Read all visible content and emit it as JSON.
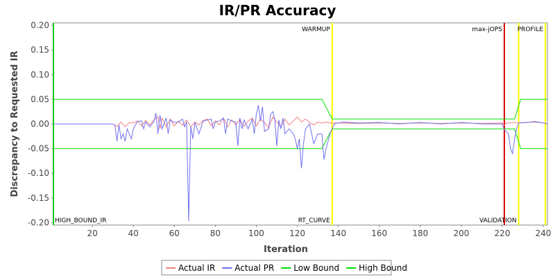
{
  "chart_data": {
    "type": "line",
    "title": "IR/PR Accuracy",
    "xlabel": "Iteration",
    "ylabel": "Discrepancy to Requested IR",
    "xlim": [
      1,
      242
    ],
    "ylim": [
      -0.205,
      0.205
    ],
    "x_ticks": [
      20,
      40,
      60,
      80,
      100,
      120,
      140,
      160,
      180,
      200,
      220,
      240
    ],
    "y_ticks": [
      -0.2,
      -0.15,
      -0.1,
      -0.05,
      0.0,
      0.05,
      0.1,
      0.15,
      0.2
    ],
    "y_tick_labels": [
      "-0.20",
      "-0.15",
      "-0.10",
      "-0.05",
      "0.00",
      "0.05",
      "0.10",
      "0.15",
      "0.20"
    ],
    "grid": false,
    "legend_position": "bottom",
    "markers": [
      {
        "label": "HIGH_BOUND_IR",
        "x": 1,
        "color": "#00cc00",
        "label_pos": "bottom-right"
      },
      {
        "label": "WARMUP",
        "x": 137,
        "color": "#ffff00",
        "label_pos": "top-left"
      },
      {
        "label": "RT_CURVE",
        "x": 137,
        "color": "#ffff00",
        "label_pos": "bottom-left"
      },
      {
        "label": "max-jOPS",
        "x": 221,
        "color": "#dd0000",
        "label_pos": "top-left"
      },
      {
        "label": "VALIDATION",
        "x": 228,
        "color": "#ffff00",
        "label_pos": "bottom-left"
      },
      {
        "label": "PROFILE",
        "x": 241,
        "color": "#ffff00",
        "label_pos": "top-left"
      }
    ],
    "series": [
      {
        "name": "Actual IR",
        "color": "#f08080",
        "points": [
          [
            1,
            0
          ],
          [
            30,
            0
          ],
          [
            32,
            -0.005
          ],
          [
            34,
            0.004
          ],
          [
            36,
            -0.006
          ],
          [
            38,
            0.003
          ],
          [
            40,
            0.002
          ],
          [
            42,
            0.006
          ],
          [
            44,
            -0.004
          ],
          [
            46,
            0.007
          ],
          [
            48,
            -0.002
          ],
          [
            50,
            0.008
          ],
          [
            52,
            0.015
          ],
          [
            53,
            -0.01
          ],
          [
            54,
            0.012
          ],
          [
            56,
            -0.006
          ],
          [
            58,
            0.01
          ],
          [
            60,
            -0.004
          ],
          [
            62,
            0.006
          ],
          [
            64,
            -0.003
          ],
          [
            66,
            0.008
          ],
          [
            68,
            -0.006
          ],
          [
            70,
            0.004
          ],
          [
            72,
            -0.002
          ],
          [
            74,
            0.007
          ],
          [
            76,
            0.01
          ],
          [
            78,
            -0.004
          ],
          [
            80,
            0.006
          ],
          [
            82,
            -0.002
          ],
          [
            84,
            0.012
          ],
          [
            86,
            -0.006
          ],
          [
            88,
            0.008
          ],
          [
            90,
            -0.002
          ],
          [
            92,
            0.01
          ],
          [
            94,
            -0.005
          ],
          [
            96,
            0.006
          ],
          [
            98,
            0.012
          ],
          [
            100,
            -0.004
          ],
          [
            102,
            0.01
          ],
          [
            104,
            0.003
          ],
          [
            106,
            -0.008
          ],
          [
            108,
            0.014
          ],
          [
            110,
            0.004
          ],
          [
            112,
            -0.006
          ],
          [
            114,
            0.01
          ],
          [
            116,
            -0.002
          ],
          [
            118,
            0.006
          ],
          [
            120,
            0.014
          ],
          [
            122,
            0.004
          ],
          [
            124,
            0.01
          ],
          [
            126,
            0.003
          ],
          [
            128,
            -0.002
          ],
          [
            130,
            0.004
          ],
          [
            132,
            0.002
          ],
          [
            134,
            0.004
          ],
          [
            136,
            0.002
          ],
          [
            140,
            0.002
          ],
          [
            150,
            0.001
          ],
          [
            160,
            0.002
          ],
          [
            170,
            0.001
          ],
          [
            180,
            0.002
          ],
          [
            190,
            0.001
          ],
          [
            200,
            0.002
          ],
          [
            210,
            0.001
          ],
          [
            220,
            0.002
          ],
          [
            221,
            -0.003
          ],
          [
            222,
            0.002
          ],
          [
            226,
            0.003
          ],
          [
            228,
            0.002
          ],
          [
            230,
            0.003
          ],
          [
            236,
            0.004
          ],
          [
            240,
            0.002
          ],
          [
            242,
            0
          ]
        ]
      },
      {
        "name": "Actual PR",
        "color": "#7070f0",
        "points": [
          [
            1,
            0
          ],
          [
            30,
            0
          ],
          [
            31,
            -0.003
          ],
          [
            32,
            -0.035
          ],
          [
            33,
            -0.002
          ],
          [
            34,
            -0.03
          ],
          [
            35,
            -0.02
          ],
          [
            36,
            -0.035
          ],
          [
            37,
            -0.01
          ],
          [
            38,
            -0.02
          ],
          [
            39,
            -0.03
          ],
          [
            40,
            -0.01
          ],
          [
            42,
            0.005
          ],
          [
            44,
            0.006
          ],
          [
            45,
            -0.01
          ],
          [
            46,
            0.004
          ],
          [
            48,
            -0.006
          ],
          [
            50,
            0.005
          ],
          [
            51,
            0.022
          ],
          [
            52,
            -0.02
          ],
          [
            53,
            0.018
          ],
          [
            54,
            -0.01
          ],
          [
            56,
            0.012
          ],
          [
            57,
            -0.02
          ],
          [
            58,
            0.008
          ],
          [
            60,
            0.003
          ],
          [
            62,
            0.004
          ],
          [
            64,
            0.01
          ],
          [
            65,
            -0.006
          ],
          [
            66,
            0.004
          ],
          [
            67,
            -0.197
          ],
          [
            68,
            -0.005
          ],
          [
            69,
            -0.03
          ],
          [
            70,
            0.003
          ],
          [
            72,
            -0.02
          ],
          [
            74,
            0.005
          ],
          [
            76,
            0.008
          ],
          [
            78,
            0.01
          ],
          [
            79,
            -0.01
          ],
          [
            80,
            0.004
          ],
          [
            82,
            0.006
          ],
          [
            84,
            0.012
          ],
          [
            85,
            -0.02
          ],
          [
            86,
            0.01
          ],
          [
            88,
            0.006
          ],
          [
            90,
            0.004
          ],
          [
            91,
            -0.045
          ],
          [
            92,
            0.012
          ],
          [
            93,
            -0.01
          ],
          [
            94,
            0.008
          ],
          [
            96,
            -0.01
          ],
          [
            98,
            0.01
          ],
          [
            99,
            -0.02
          ],
          [
            100,
            0.02
          ],
          [
            101,
            0.038
          ],
          [
            102,
            0.006
          ],
          [
            103,
            0.035
          ],
          [
            104,
            -0.015
          ],
          [
            106,
            -0.01
          ],
          [
            107,
            0.02
          ],
          [
            108,
            0.025
          ],
          [
            109,
            0.01
          ],
          [
            110,
            -0.045
          ],
          [
            111,
            0.008
          ],
          [
            112,
            -0.01
          ],
          [
            113,
            0.012
          ],
          [
            114,
            -0.02
          ],
          [
            116,
            -0.01
          ],
          [
            118,
            -0.02
          ],
          [
            119,
            -0.03
          ],
          [
            120,
            -0.05
          ],
          [
            121,
            -0.03
          ],
          [
            122,
            -0.09
          ],
          [
            123,
            -0.04
          ],
          [
            124,
            -0.01
          ],
          [
            126,
            0.0
          ],
          [
            128,
            -0.04
          ],
          [
            130,
            -0.02
          ],
          [
            132,
            -0.02
          ],
          [
            133,
            -0.072
          ],
          [
            134,
            -0.05
          ],
          [
            136,
            -0.02
          ],
          [
            138,
            0.0
          ],
          [
            142,
            0.004
          ],
          [
            150,
            0.002
          ],
          [
            160,
            0.003
          ],
          [
            170,
            0.0
          ],
          [
            180,
            0.003
          ],
          [
            190,
            0.0
          ],
          [
            200,
            0.003
          ],
          [
            210,
            0.0
          ],
          [
            220,
            0.0
          ],
          [
            221,
            -0.012
          ],
          [
            223,
            -0.02
          ],
          [
            224,
            -0.05
          ],
          [
            225,
            -0.06
          ],
          [
            226,
            -0.03
          ],
          [
            227,
            -0.01
          ],
          [
            228,
            0.002
          ],
          [
            232,
            0.003
          ],
          [
            236,
            0.005
          ],
          [
            240,
            0.002
          ],
          [
            242,
            0
          ]
        ]
      },
      {
        "name": "Low Bound",
        "color": "#00e000",
        "points": [
          [
            1,
            -0.05
          ],
          [
            132,
            -0.05
          ],
          [
            137,
            -0.01
          ],
          [
            226,
            -0.01
          ],
          [
            229,
            -0.05
          ],
          [
            242,
            -0.05
          ]
        ]
      },
      {
        "name": "High Bound",
        "color": "#00e000",
        "points": [
          [
            1,
            0.05
          ],
          [
            132,
            0.05
          ],
          [
            137,
            0.01
          ],
          [
            226,
            0.01
          ],
          [
            229,
            0.05
          ],
          [
            242,
            0.05
          ]
        ]
      }
    ]
  }
}
